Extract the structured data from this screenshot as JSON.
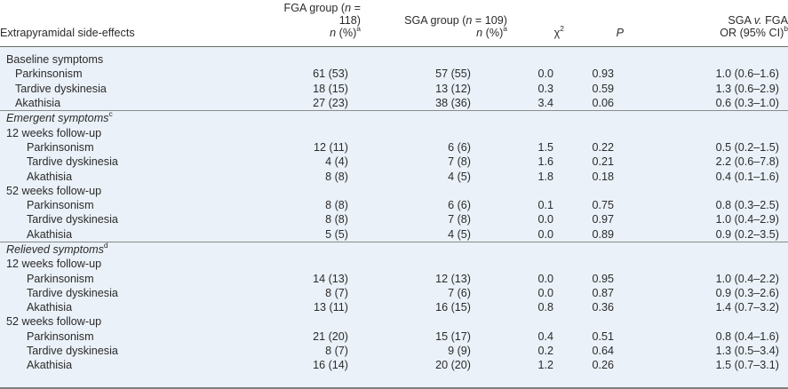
{
  "header": {
    "col0": "Extrapyramidal side-effects",
    "fga_prefix": "FGA group (",
    "fga_n": "n",
    "fga_suffix": " = 118)",
    "sga_prefix": "SGA group (",
    "sga_n": "n",
    "sga_suffix": " = 109)",
    "n_label": "n",
    "pct_label": " (%)",
    "sup_a": "a",
    "chi": "χ",
    "chi_sup": "2",
    "p": "P",
    "or_line1_a": "SGA ",
    "or_line1_v": "v.",
    "or_line1_b": " FGA",
    "or_line2": "OR (95% CI)",
    "sup_b": "b"
  },
  "sections": [
    {
      "title": "Baseline symptoms",
      "italic": false,
      "sup": "",
      "groups": [
        {
          "title": "",
          "rows": [
            {
              "label": "Parkinsonism",
              "fga": "61 (53)",
              "sga": "57 (55)",
              "chi2": "0.0",
              "p": "0.93",
              "or": "1.0 (0.6–1.6)"
            },
            {
              "label": "Tardive dyskinesia",
              "fga": "18 (15)",
              "sga": "13 (12)",
              "chi2": "0.3",
              "p": "0.59",
              "or": "1.3 (0.6–2.9)"
            },
            {
              "label": "Akathisia",
              "fga": "27 (23)",
              "sga": "38 (36)",
              "chi2": "3.4",
              "p": "0.06",
              "or": "0.6 (0.3–1.0)"
            }
          ]
        }
      ]
    },
    {
      "title": "Emergent symptoms",
      "italic": true,
      "sup": "c",
      "groups": [
        {
          "title": "12 weeks follow-up",
          "rows": [
            {
              "label": "Parkinsonism",
              "fga": "12 (11)",
              "sga": "6 (6)",
              "chi2": "1.5",
              "p": "0.22",
              "or": "0.5 (0.2–1.5)"
            },
            {
              "label": "Tardive dyskinesia",
              "fga": "4 (4)",
              "sga": "7 (8)",
              "chi2": "1.6",
              "p": "0.21",
              "or": "2.2 (0.6–7.8)"
            },
            {
              "label": "Akathisia",
              "fga": "8 (8)",
              "sga": "4 (5)",
              "chi2": "1.8",
              "p": "0.18",
              "or": "0.4 (0.1–1.6)"
            }
          ]
        },
        {
          "title": "52 weeks follow-up",
          "rows": [
            {
              "label": "Parkinsonism",
              "fga": "8 (8)",
              "sga": "6 (6)",
              "chi2": "0.1",
              "p": "0.75",
              "or": "0.8 (0.3–2.5)"
            },
            {
              "label": "Tardive dyskinesia",
              "fga": "8 (8)",
              "sga": "7 (8)",
              "chi2": "0.0",
              "p": "0.97",
              "or": "1.0 (0.4–2.9)"
            },
            {
              "label": "Akathisia",
              "fga": "5 (5)",
              "sga": "4 (5)",
              "chi2": "0.0",
              "p": "0.89",
              "or": "0.9 (0.2–3.5)"
            }
          ]
        }
      ]
    },
    {
      "title": "Relieved symptoms",
      "italic": true,
      "sup": "d",
      "groups": [
        {
          "title": "12 weeks follow-up",
          "rows": [
            {
              "label": "Parkinsonism",
              "fga": "14 (13)",
              "sga": "12 (13)",
              "chi2": "0.0",
              "p": "0.95",
              "or": "1.0 (0.4–2.2)"
            },
            {
              "label": "Tardive dyskinesia",
              "fga": "8 (7)",
              "sga": "7 (6)",
              "chi2": "0.0",
              "p": "0.87",
              "or": "0.9 (0.3–2.6)"
            },
            {
              "label": "Akathisia",
              "fga": "13 (11)",
              "sga": "16 (15)",
              "chi2": "0.8",
              "p": "0.36",
              "or": "1.4 (0.7–3.2)"
            }
          ]
        },
        {
          "title": "52 weeks follow-up",
          "rows": [
            {
              "label": "Parkinsonism",
              "fga": "21 (20)",
              "sga": "15 (17)",
              "chi2": "0.4",
              "p": "0.51",
              "or": "0.8 (0.4–1.6)"
            },
            {
              "label": "Tardive dyskinesia",
              "fga": "8 (7)",
              "sga": "9 (9)",
              "chi2": "0.2",
              "p": "0.64",
              "or": "1.3 (0.5–3.4)"
            },
            {
              "label": "Akathisia",
              "fga": "16 (14)",
              "sga": "20 (20)",
              "chi2": "1.2",
              "p": "0.26",
              "or": "1.5 (0.7–3.1)"
            }
          ]
        }
      ]
    }
  ]
}
